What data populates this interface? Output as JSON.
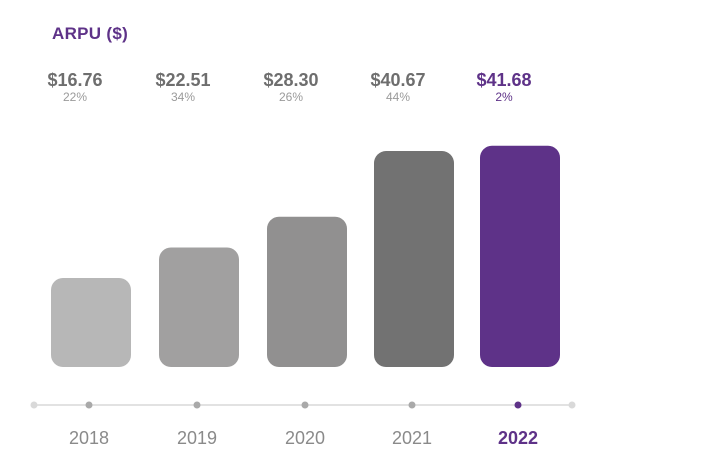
{
  "chart_data": {
    "type": "bar",
    "title": "ARPU ($)",
    "categories": [
      "2018",
      "2019",
      "2020",
      "2021",
      "2022"
    ],
    "series": [
      {
        "values": [
          16.76,
          22.51,
          28.3,
          40.67,
          41.68
        ],
        "value_labels": [
          "$16.76",
          "$22.51",
          "$28.30",
          "$40.67",
          "$41.68"
        ],
        "growth_labels": [
          "22%",
          "34%",
          "26%",
          "44%",
          "2%"
        ]
      }
    ],
    "colors": [
      "#b7b7b7",
      "#a1a0a0",
      "#919090",
      "#727272",
      "#5e3288"
    ],
    "highlight_color": "#5e3288",
    "highlight_category": "2022",
    "ylim": [
      0,
      42
    ],
    "grid": false,
    "legend": "none"
  }
}
